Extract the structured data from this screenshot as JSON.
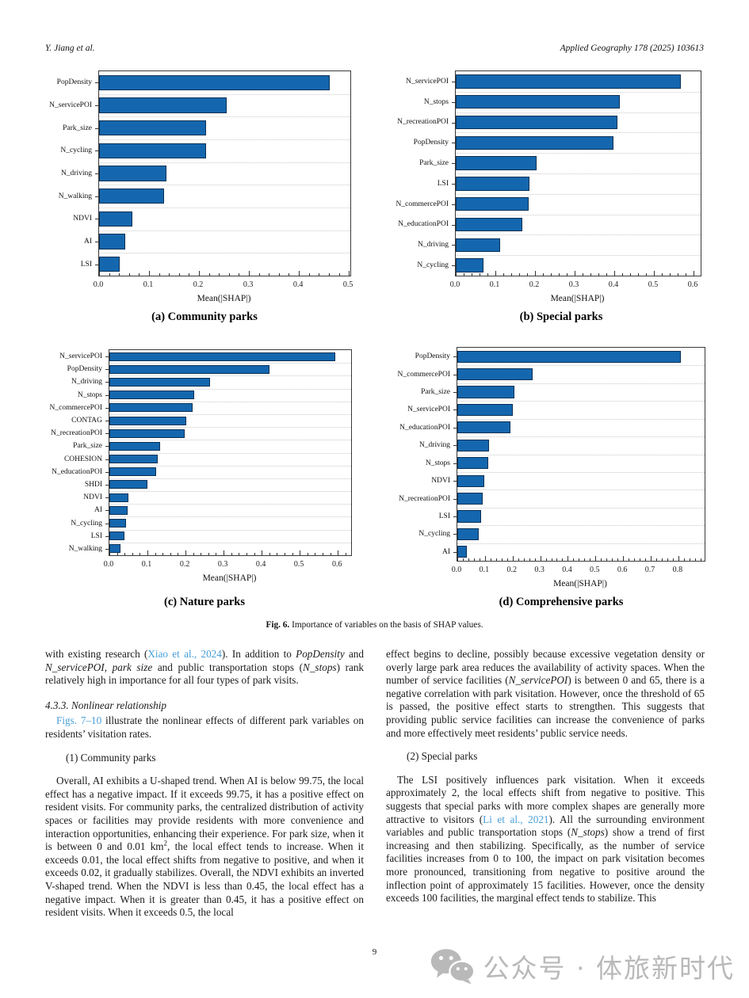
{
  "page": {
    "header_left": "Y. Jiang et al.",
    "header_right": "Applied Geography 178 (2025) 103613",
    "page_number": "9",
    "watermark_text": "公众号 · 体旅新时代",
    "accent_link_color": "#4aa0d8",
    "bar_color": "#1467ae"
  },
  "figure": {
    "caption_prefix": "Fig. 6.",
    "caption_text": " Importance of variables on the basis of SHAP values."
  },
  "chart_data": [
    {
      "type": "bar",
      "orientation": "horizontal",
      "title": "(a) Community parks",
      "xlabel": "Mean(|SHAP|)",
      "xlim": [
        0,
        0.503
      ],
      "xticks": [
        0.0,
        0.1,
        0.2,
        0.3,
        0.4,
        0.5
      ],
      "grid": "dotted-horizontal",
      "bar_color": "#1467ae",
      "categories": [
        "PopDensity",
        "N_servicePOI",
        "Park_size",
        "N_cycling",
        "N_driving",
        "N_walking",
        "NDVI",
        "AI",
        "LSI"
      ],
      "values": [
        0.462,
        0.256,
        0.215,
        0.214,
        0.135,
        0.13,
        0.066,
        0.052,
        0.041
      ]
    },
    {
      "type": "bar",
      "orientation": "horizontal",
      "title": "(b) Special parks",
      "xlabel": "Mean(|SHAP|)",
      "xlim": [
        0,
        0.618
      ],
      "xticks": [
        0.0,
        0.1,
        0.2,
        0.3,
        0.4,
        0.5,
        0.6
      ],
      "grid": "dotted-horizontal",
      "bar_color": "#1467ae",
      "categories": [
        "N_servicePOI",
        "N_stops",
        "N_recreationPOI",
        "PopDensity",
        "Park_size",
        "LSI",
        "N_commercePOI",
        "N_educationPOI",
        "N_driving",
        "N_cycling"
      ],
      "values": [
        0.568,
        0.414,
        0.408,
        0.398,
        0.204,
        0.186,
        0.184,
        0.168,
        0.112,
        0.07
      ]
    },
    {
      "type": "bar",
      "orientation": "horizontal",
      "title": "(c) Nature parks",
      "xlabel": "Mean(|SHAP|)",
      "xlim": [
        0,
        0.635
      ],
      "xticks": [
        0.0,
        0.1,
        0.2,
        0.3,
        0.4,
        0.5,
        0.6
      ],
      "grid": "dotted-horizontal",
      "bar_color": "#1467ae",
      "categories": [
        "N_servicePOI",
        "PopDensity",
        "N_driving",
        "N_stops",
        "N_commercePOI",
        "CONTAG",
        "N_recreationPOI",
        "Park_size",
        "COHESION",
        "N_educationPOI",
        "SHDI",
        "NDVI",
        "AI",
        "N_cycling",
        "LSI",
        "N_walking"
      ],
      "values": [
        0.594,
        0.421,
        0.264,
        0.223,
        0.219,
        0.202,
        0.198,
        0.133,
        0.127,
        0.123,
        0.1,
        0.05,
        0.048,
        0.044,
        0.04,
        0.029
      ]
    },
    {
      "type": "bar",
      "orientation": "horizontal",
      "title": "(d) Comprehensive parks",
      "xlabel": "Mean(|SHAP|)",
      "xlim": [
        0,
        0.895
      ],
      "xticks": [
        0.0,
        0.1,
        0.2,
        0.3,
        0.4,
        0.5,
        0.6,
        0.7,
        0.8
      ],
      "grid": "dotted-horizontal",
      "bar_color": "#1467ae",
      "categories": [
        "PopDensity",
        "N_commercePOI",
        "Park_size",
        "N_servicePOI",
        "N_educationPOI",
        "N_driving",
        "N_stops",
        "NDVI",
        "N_recreationPOI",
        "LSI",
        "N_cycling",
        "AI"
      ],
      "values": [
        0.809,
        0.272,
        0.206,
        0.2,
        0.192,
        0.115,
        0.112,
        0.097,
        0.092,
        0.086,
        0.077,
        0.034
      ]
    }
  ],
  "body": {
    "columns": [
      {
        "blocks": [
          {
            "kind": "p",
            "indent": false,
            "segments": [
              {
                "t": "with existing research ("
              },
              {
                "t": "Xiao et al., 2024",
                "s": "link"
              },
              {
                "t": "). In addition to "
              },
              {
                "t": "PopDensity",
                "s": "it"
              },
              {
                "t": " and "
              },
              {
                "t": "N_servicePOI",
                "s": "it"
              },
              {
                "t": ", "
              },
              {
                "t": "park size",
                "s": "it"
              },
              {
                "t": " and public transportation stops ("
              },
              {
                "t": "N_stops",
                "s": "it"
              },
              {
                "t": ") rank relatively high in importance for all four types of park visits."
              }
            ]
          },
          {
            "kind": "h",
            "indent": false,
            "segments": [
              {
                "t": "4.3.3.  Nonlinear relationship"
              }
            ]
          },
          {
            "kind": "p",
            "indent": true,
            "segments": [
              {
                "t": "Figs. 7–10",
                "s": "link"
              },
              {
                "t": " illustrate the nonlinear effects of different park variables on residents’ visitation rates."
              }
            ]
          },
          {
            "kind": "li",
            "indent": false,
            "segments": [
              {
                "t": "(1) Community parks"
              }
            ]
          },
          {
            "kind": "p",
            "indent": true,
            "segments": [
              {
                "t": "Overall, AI exhibits a U-shaped trend. When AI is below 99.75, the local effect has a negative impact. If it exceeds 99.75, it has a positive effect on resident visits. For community parks, the centralized distribution of activity spaces or facilities may provide residents with more convenience and interaction opportunities, enhancing their experience. For park size, when it is between 0 and 0.01 km"
              },
              {
                "t": "2",
                "s": "sup"
              },
              {
                "t": ", the local effect tends to increase. When it exceeds 0.01, the local effect shifts from negative to positive, and when it exceeds 0.02, it gradually stabilizes. Overall, the NDVI exhibits an inverted V-shaped trend. When the NDVI is less than 0.45, the local effect has a negative impact. When it is greater than 0.45, it has a positive effect on resident visits. When it exceeds 0.5, the local"
              }
            ]
          }
        ]
      },
      {
        "blocks": [
          {
            "kind": "p",
            "indent": false,
            "segments": [
              {
                "t": "effect begins to decline, possibly because excessive vegetation density or overly large park area reduces the availability of activity spaces. When the number of service facilities ("
              },
              {
                "t": "N_servicePOI",
                "s": "it"
              },
              {
                "t": ") is between 0 and 65, there is a negative correlation with park visitation. However, once the threshold of 65 is passed, the positive effect starts to strengthen. This suggests that providing public service facilities can increase the convenience of parks and more effectively meet residents’ public service needs."
              }
            ]
          },
          {
            "kind": "li",
            "indent": false,
            "segments": [
              {
                "t": "(2) Special parks"
              }
            ]
          },
          {
            "kind": "p",
            "indent": true,
            "segments": [
              {
                "t": "The LSI positively influences park visitation. When it exceeds approximately 2, the local effects shift from negative to positive. This suggests that special parks with more complex shapes are generally more attractive to visitors ("
              },
              {
                "t": "Li et al., 2021",
                "s": "link"
              },
              {
                "t": "). All the surrounding environment variables and public transportation stops ("
              },
              {
                "t": "N_stops",
                "s": "it"
              },
              {
                "t": ") show a trend of first increasing and then stabilizing. Specifically, as the number of service facilities increases from 0 to 100, the impact on park visitation becomes more pronounced, transitioning from negative to positive around the inflection point of approximately 15 facilities. However, once the density exceeds 100 facilities, the marginal effect tends to stabilize. This"
              }
            ]
          }
        ]
      }
    ]
  }
}
